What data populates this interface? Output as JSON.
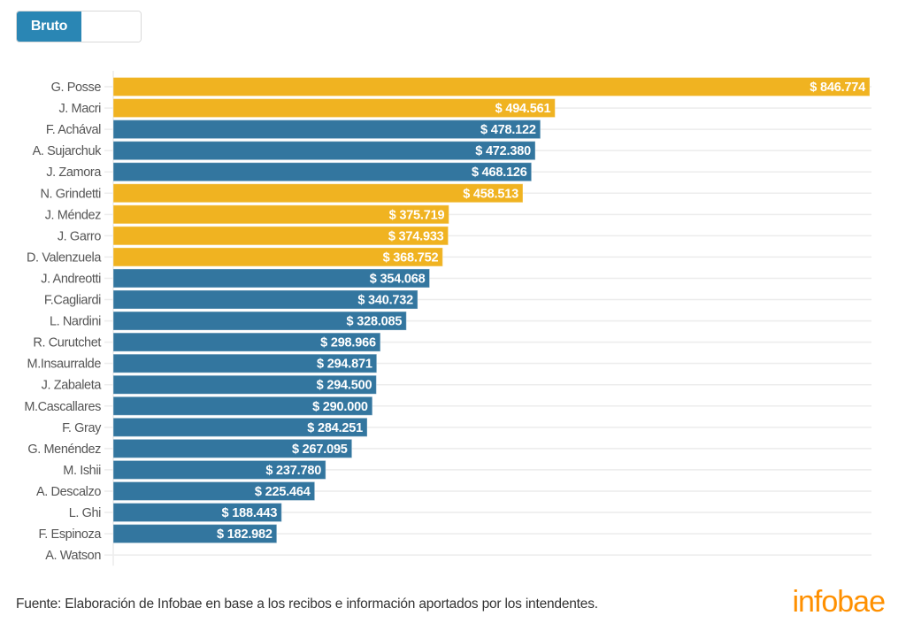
{
  "toggle": {
    "options": [
      "Bruto",
      ""
    ],
    "selected": "Bruto"
  },
  "colors": {
    "highlight": "#f0b321",
    "default": "#33769f",
    "grid": "#ececec",
    "label_text": "#555555",
    "value_text": "#ffffff",
    "toggle_active": "#2a86b4",
    "logo": "#ff9000"
  },
  "chart_data": {
    "type": "bar",
    "orientation": "horizontal",
    "title": "",
    "xlabel": "",
    "ylabel": "",
    "xlim": [
      0,
      846774
    ],
    "grid": true,
    "legend": "none",
    "value_prefix": "$ ",
    "categories": [
      "G. Posse",
      "J. Macri",
      "F. Achával",
      "A. Sujarchuk",
      "J. Zamora",
      "N. Grindetti",
      "J. Méndez",
      "J. Garro",
      "D. Valenzuela",
      "J. Andreotti",
      "F.Cagliardi",
      "L. Nardini",
      "R. Curutchet",
      "M.Insaurralde",
      "J. Zabaleta",
      "M.Cascallares",
      "F. Gray",
      "G. Menéndez",
      "M. Ishii",
      "A. Descalzo",
      "L. Ghi",
      "F. Espinoza",
      "A. Watson"
    ],
    "values": [
      846774,
      494561,
      478122,
      472380,
      468126,
      458513,
      375719,
      374933,
      368752,
      354068,
      340732,
      328085,
      298966,
      294871,
      294500,
      290000,
      284251,
      267095,
      237780,
      225464,
      188443,
      182982,
      null
    ],
    "value_labels": [
      "$ 846.774",
      "$ 494.561",
      "$ 478.122",
      "$ 472.380",
      "$ 468.126",
      "$ 458.513",
      "$ 375.719",
      "$ 374.933",
      "$ 368.752",
      "$ 354.068",
      "$ 340.732",
      "$ 328.085",
      "$ 298.966",
      "$ 294.871",
      "$ 294.500",
      "$ 290.000",
      "$ 284.251",
      "$ 267.095",
      "$ 237.780",
      "$ 225.464",
      "$ 188.443",
      "$ 182.982",
      ""
    ],
    "groups": [
      "highlight",
      "highlight",
      "default",
      "default",
      "default",
      "highlight",
      "highlight",
      "highlight",
      "highlight",
      "default",
      "default",
      "default",
      "default",
      "default",
      "default",
      "default",
      "default",
      "default",
      "default",
      "default",
      "default",
      "default",
      "default"
    ]
  },
  "footer": {
    "source": "Fuente: Elaboración de Infobae en base a los recibos e información aportados por los intendentes.",
    "logo": "infobae"
  }
}
